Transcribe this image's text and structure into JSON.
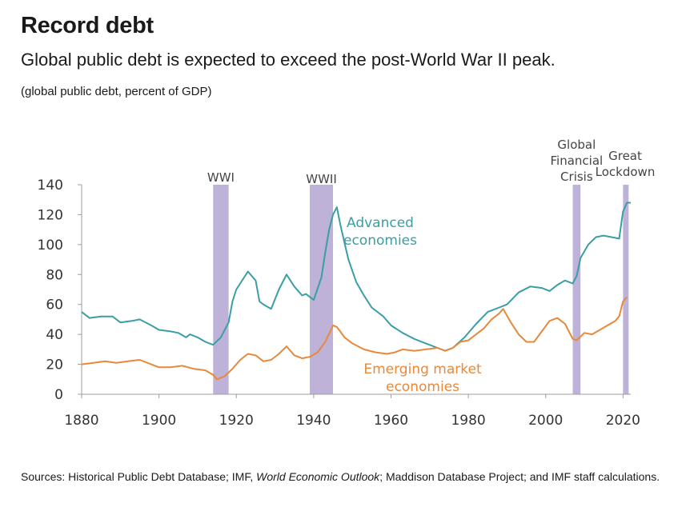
{
  "title": "Record debt",
  "subtitle": "Global public debt is expected to exceed the post-World War II peak.",
  "unit_note": "(global public debt, percent of GDP)",
  "sources": {
    "prefix": "Sources: Historical Public Debt Database; IMF, ",
    "italic": "World Economic Outlook",
    "suffix": "; Maddison Database Project; and IMF staff calculations."
  },
  "colors": {
    "advanced": "#3a9ea5",
    "emerging": "#e8893a",
    "band": "#b3a5d1",
    "axis": "#9e9e9e",
    "text": "#333333"
  },
  "chart_data": {
    "type": "line",
    "x_axis": {
      "min": 1880,
      "max": 2022,
      "ticks": [
        1880,
        1900,
        1920,
        1940,
        1960,
        1980,
        2000,
        2020
      ]
    },
    "y_axis": {
      "min": 0,
      "max": 140,
      "ticks": [
        0,
        20,
        40,
        60,
        80,
        100,
        120,
        140
      ]
    },
    "shaded_periods": [
      {
        "label": "WWI",
        "start": 1914,
        "end": 1918
      },
      {
        "label": "WWII",
        "start": 1939,
        "end": 1945
      },
      {
        "label": "Global Financial Crisis",
        "start": 2007,
        "end": 2009
      },
      {
        "label": "Great Lockdown",
        "start": 2020,
        "end": 2021
      }
    ],
    "series": [
      {
        "name": "Advanced economies",
        "color": "#3a9ea5",
        "points": [
          [
            1880,
            55
          ],
          [
            1882,
            51
          ],
          [
            1885,
            52
          ],
          [
            1888,
            52
          ],
          [
            1890,
            48
          ],
          [
            1893,
            49
          ],
          [
            1895,
            50
          ],
          [
            1898,
            46
          ],
          [
            1900,
            43
          ],
          [
            1903,
            42
          ],
          [
            1905,
            41
          ],
          [
            1907,
            38
          ],
          [
            1908,
            40
          ],
          [
            1910,
            38
          ],
          [
            1912,
            35
          ],
          [
            1914,
            33
          ],
          [
            1916,
            38
          ],
          [
            1918,
            48
          ],
          [
            1919,
            62
          ],
          [
            1920,
            70
          ],
          [
            1922,
            78
          ],
          [
            1923,
            82
          ],
          [
            1925,
            76
          ],
          [
            1926,
            62
          ],
          [
            1927,
            60
          ],
          [
            1929,
            57
          ],
          [
            1931,
            70
          ],
          [
            1933,
            80
          ],
          [
            1935,
            72
          ],
          [
            1937,
            66
          ],
          [
            1938,
            67
          ],
          [
            1940,
            63
          ],
          [
            1942,
            78
          ],
          [
            1943,
            95
          ],
          [
            1944,
            110
          ],
          [
            1945,
            120
          ],
          [
            1946,
            125
          ],
          [
            1947,
            112
          ],
          [
            1949,
            90
          ],
          [
            1951,
            75
          ],
          [
            1953,
            66
          ],
          [
            1955,
            58
          ],
          [
            1958,
            52
          ],
          [
            1960,
            46
          ],
          [
            1963,
            41
          ],
          [
            1966,
            37
          ],
          [
            1969,
            34
          ],
          [
            1972,
            31
          ],
          [
            1974,
            29
          ],
          [
            1976,
            31
          ],
          [
            1979,
            38
          ],
          [
            1982,
            47
          ],
          [
            1985,
            55
          ],
          [
            1988,
            58
          ],
          [
            1990,
            60
          ],
          [
            1993,
            68
          ],
          [
            1996,
            72
          ],
          [
            1999,
            71
          ],
          [
            2001,
            69
          ],
          [
            2003,
            73
          ],
          [
            2005,
            76
          ],
          [
            2007,
            74
          ],
          [
            2008,
            79
          ],
          [
            2009,
            91
          ],
          [
            2011,
            100
          ],
          [
            2013,
            105
          ],
          [
            2015,
            106
          ],
          [
            2017,
            105
          ],
          [
            2019,
            104
          ],
          [
            2020,
            122
          ],
          [
            2021,
            128
          ],
          [
            2022,
            128
          ]
        ]
      },
      {
        "name": "Emerging market economies",
        "color": "#e8893a",
        "points": [
          [
            1880,
            20
          ],
          [
            1883,
            21
          ],
          [
            1886,
            22
          ],
          [
            1889,
            21
          ],
          [
            1892,
            22
          ],
          [
            1895,
            23
          ],
          [
            1897,
            21
          ],
          [
            1900,
            18
          ],
          [
            1903,
            18
          ],
          [
            1906,
            19
          ],
          [
            1909,
            17
          ],
          [
            1912,
            16
          ],
          [
            1914,
            13
          ],
          [
            1915,
            10
          ],
          [
            1917,
            12
          ],
          [
            1919,
            17
          ],
          [
            1921,
            23
          ],
          [
            1923,
            27
          ],
          [
            1925,
            26
          ],
          [
            1927,
            22
          ],
          [
            1929,
            23
          ],
          [
            1931,
            27
          ],
          [
            1933,
            32
          ],
          [
            1935,
            26
          ],
          [
            1937,
            24
          ],
          [
            1939,
            25
          ],
          [
            1941,
            28
          ],
          [
            1943,
            35
          ],
          [
            1945,
            46
          ],
          [
            1946,
            45
          ],
          [
            1948,
            38
          ],
          [
            1950,
            34
          ],
          [
            1953,
            30
          ],
          [
            1956,
            28
          ],
          [
            1959,
            27
          ],
          [
            1961,
            28
          ],
          [
            1963,
            30
          ],
          [
            1966,
            29
          ],
          [
            1969,
            30
          ],
          [
            1972,
            31
          ],
          [
            1974,
            29
          ],
          [
            1976,
            31
          ],
          [
            1978,
            35
          ],
          [
            1980,
            36
          ],
          [
            1982,
            40
          ],
          [
            1984,
            44
          ],
          [
            1986,
            50
          ],
          [
            1988,
            54
          ],
          [
            1989,
            57
          ],
          [
            1991,
            48
          ],
          [
            1993,
            40
          ],
          [
            1995,
            35
          ],
          [
            1997,
            35
          ],
          [
            1999,
            42
          ],
          [
            2001,
            49
          ],
          [
            2003,
            51
          ],
          [
            2005,
            47
          ],
          [
            2007,
            37
          ],
          [
            2008,
            36
          ],
          [
            2010,
            41
          ],
          [
            2012,
            40
          ],
          [
            2014,
            43
          ],
          [
            2016,
            46
          ],
          [
            2018,
            49
          ],
          [
            2019,
            52
          ],
          [
            2020,
            62
          ],
          [
            2021,
            65
          ]
        ]
      }
    ],
    "annotations": [
      {
        "series": "Advanced economies",
        "lines": [
          "Advanced",
          "economies"
        ]
      },
      {
        "series": "Emerging market economies",
        "lines": [
          "Emerging market",
          "economies"
        ]
      }
    ]
  }
}
